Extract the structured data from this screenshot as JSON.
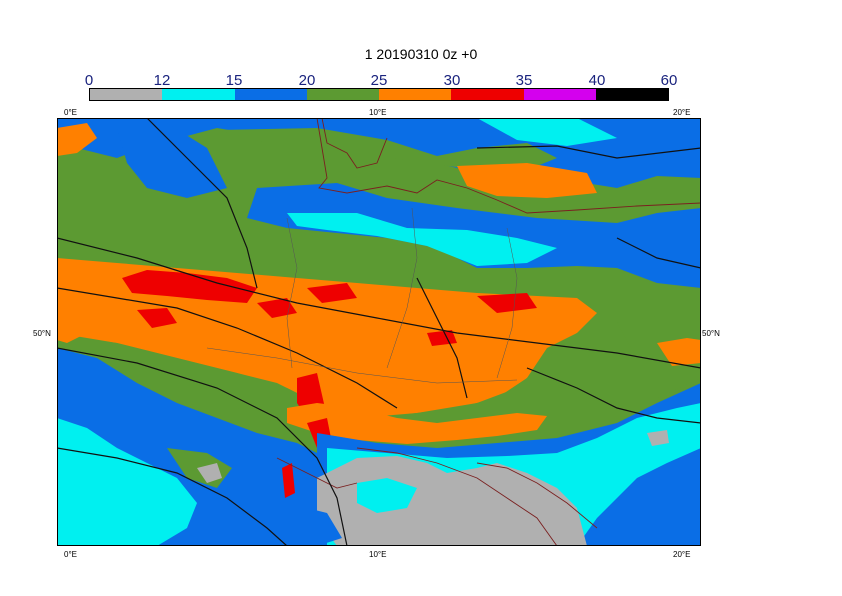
{
  "title": "1 20190310 0z +0",
  "colorbar": {
    "labels": [
      "0",
      "12",
      "15",
      "20",
      "25",
      "30",
      "35",
      "40",
      "60"
    ],
    "colors": [
      "#b0b0b0",
      "#00f0f0",
      "#0a6ee6",
      "#5c9a32",
      "#ff8000",
      "#ee0000",
      "#d400ee",
      "#000000"
    ]
  },
  "axes": {
    "top": [
      "0°E",
      "10°E",
      "20°E"
    ],
    "bottom": [
      "0°E",
      "10°E",
      "20°E"
    ],
    "left": "50°N",
    "right": "50°N"
  }
}
